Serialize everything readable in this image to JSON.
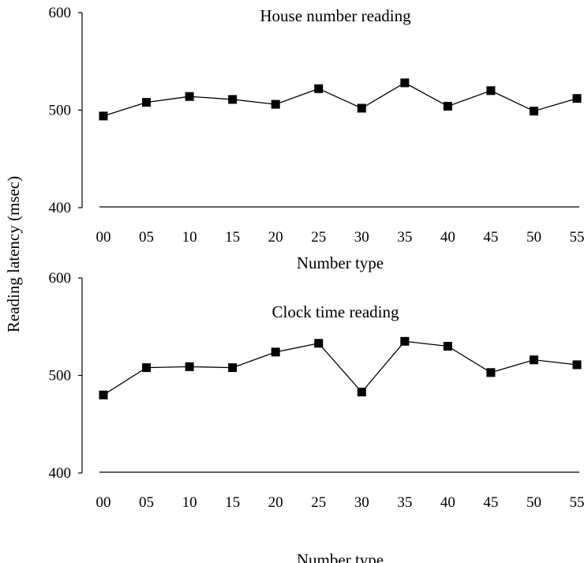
{
  "shared_ylabel": "Reading latency (msec)",
  "chart_data": [
    {
      "type": "line",
      "title": "House number reading",
      "xlabel": "Number type",
      "categories": [
        "00",
        "05",
        "10",
        "15",
        "20",
        "25",
        "30",
        "35",
        "40",
        "45",
        "50",
        "55"
      ],
      "yticks": [
        "400",
        "500",
        "600"
      ],
      "ylim": [
        400,
        600
      ],
      "grid": false,
      "series": [
        {
          "values": [
            494,
            508,
            514,
            511,
            506,
            522,
            502,
            528,
            504,
            520,
            499,
            512
          ]
        }
      ]
    },
    {
      "type": "line",
      "title": "Clock time reading",
      "xlabel": "Number type",
      "categories": [
        "00",
        "05",
        "10",
        "15",
        "20",
        "25",
        "30",
        "35",
        "40",
        "45",
        "50",
        "55"
      ],
      "yticks": [
        "400",
        "500",
        "600"
      ],
      "ylim": [
        400,
        600
      ],
      "grid": false,
      "series": [
        {
          "values": [
            480,
            508,
            509,
            508,
            524,
            533,
            483,
            535,
            530,
            503,
            516,
            511
          ]
        }
      ]
    }
  ]
}
